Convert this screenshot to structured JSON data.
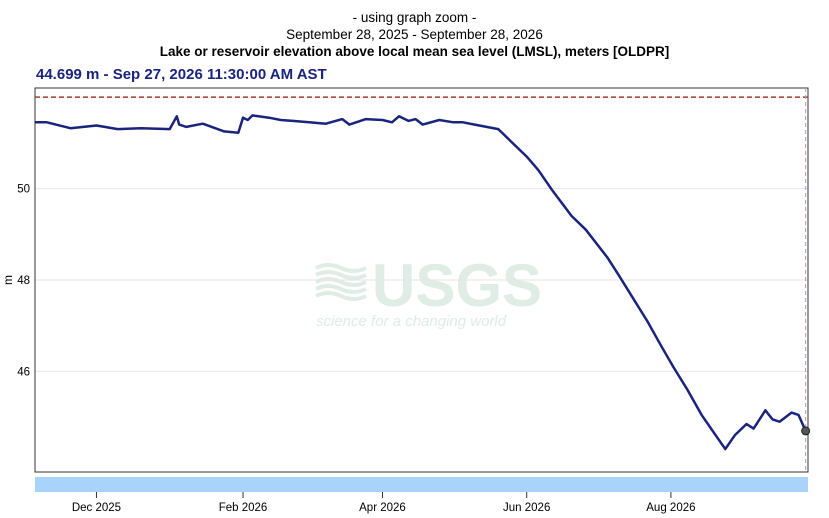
{
  "header": {
    "subtitle": "- using graph zoom -",
    "date_range": "September 28, 2025 - September 28, 2026",
    "title": "Lake or reservoir elevation above local mean sea level (LMSL), meters [OLDPR]"
  },
  "readout": "44.699 m - Sep 27, 2026 11:30:00 AM AST",
  "watermark": {
    "logo": "USGS",
    "tagline": "science for a changing world"
  },
  "colors": {
    "series": "#1a237e",
    "reference_line": "#a0402a",
    "nav_bar": "#a8d4fb",
    "cursor_line": "#c48fc4",
    "watermark": "#e0ece6"
  },
  "chart_data": {
    "type": "line",
    "title": "Lake or reservoir elevation above local mean sea level (LMSL), meters [OLDPR]",
    "xlabel": "",
    "ylabel": "m",
    "xlim": [
      "2025-11-05",
      "2026-09-28"
    ],
    "ylim": [
      43.8,
      52.2
    ],
    "grid": true,
    "x_ticks": [
      "Dec 2025",
      "Feb 2026",
      "Apr 2026",
      "Jun 2026",
      "Aug 2026"
    ],
    "x_tick_dates": [
      "2025-12-01",
      "2026-02-01",
      "2026-04-01",
      "2026-06-01",
      "2026-08-01"
    ],
    "y_ticks": [
      46,
      48,
      50
    ],
    "reference_line": {
      "y": 52.0
    },
    "cursor": {
      "x": "2026-09-27",
      "y": 44.699
    },
    "series": [
      {
        "x": [
          "2025-11-05",
          "2025-11-10",
          "2025-11-20",
          "2025-12-01",
          "2025-12-10",
          "2025-12-20",
          "2026-01-01",
          "2026-01-04",
          "2026-01-05",
          "2026-01-08",
          "2026-01-15",
          "2026-01-24",
          "2026-01-30",
          "2026-02-01",
          "2026-02-03",
          "2026-02-05",
          "2026-02-12",
          "2026-02-17",
          "2026-02-22",
          "2026-03-01",
          "2026-03-08",
          "2026-03-15",
          "2026-03-18",
          "2026-03-25",
          "2026-04-01",
          "2026-04-05",
          "2026-04-08",
          "2026-04-12",
          "2026-04-15",
          "2026-04-18",
          "2026-04-25",
          "2026-05-01",
          "2026-05-05",
          "2026-05-10",
          "2026-05-15",
          "2026-05-20",
          "2026-05-25",
          "2026-06-01",
          "2026-06-06",
          "2026-06-12",
          "2026-06-20",
          "2026-06-26",
          "2026-07-02",
          "2026-07-05",
          "2026-07-10",
          "2026-07-16",
          "2026-07-22",
          "2026-07-28",
          "2026-08-02",
          "2026-08-08",
          "2026-08-14",
          "2026-08-20",
          "2026-08-24",
          "2026-08-28",
          "2026-09-02",
          "2026-09-05",
          "2026-09-10",
          "2026-09-13",
          "2026-09-16",
          "2026-09-21",
          "2026-09-24",
          "2026-09-27"
        ],
        "y": [
          51.45,
          51.45,
          51.32,
          51.38,
          51.3,
          51.32,
          51.3,
          51.58,
          51.4,
          51.35,
          51.42,
          51.25,
          51.22,
          51.55,
          51.5,
          51.6,
          51.55,
          51.5,
          51.48,
          51.45,
          51.42,
          51.52,
          51.4,
          51.52,
          51.5,
          51.45,
          51.58,
          51.48,
          51.52,
          51.4,
          51.5,
          51.45,
          51.45,
          51.4,
          51.35,
          51.3,
          51.05,
          50.7,
          50.4,
          49.95,
          49.4,
          49.1,
          48.7,
          48.5,
          48.1,
          47.6,
          47.1,
          46.55,
          46.1,
          45.6,
          45.05,
          44.6,
          44.3,
          44.6,
          44.85,
          44.75,
          45.15,
          44.95,
          44.9,
          45.1,
          45.05,
          44.7
        ]
      }
    ]
  }
}
